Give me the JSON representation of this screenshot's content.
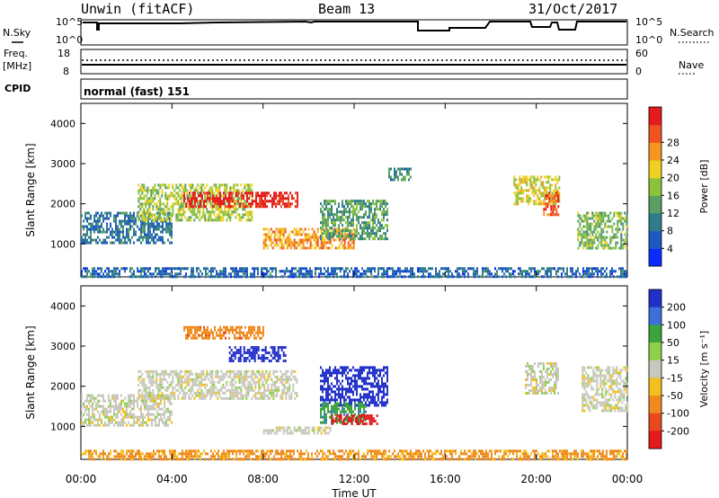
{
  "header": {
    "station": "Unwin (fitACF)",
    "beam": "Beam 13",
    "date": "31/Oct/2017"
  },
  "top_panel_labels": {
    "nsky": "N.Sky",
    "nsearch": "N.Search",
    "freq": "Freq.",
    "freq_unit": "[MHz]",
    "nave": "Nave",
    "cpid": "CPID",
    "cpid_value": "normal (fast) 151",
    "nsky_ticks": [
      "10^5",
      "10^0"
    ],
    "freq_ticks": [
      "18",
      "8"
    ],
    "nave_ticks": [
      "60",
      "0"
    ]
  },
  "chart_data": [
    {
      "type": "heatmap",
      "title": "Power",
      "xlabel": "Time UT",
      "ylabel": "Slant Range [km]",
      "x_ticks": [
        "00:00",
        "04:00",
        "08:00",
        "12:00",
        "16:00",
        "20:00",
        "00:00"
      ],
      "y_ticks": [
        1000,
        2000,
        3000,
        4000
      ],
      "ylim": [
        180,
        4500
      ],
      "xlim_hours": [
        0,
        24
      ],
      "colorbar": {
        "label": "Power [dB]",
        "ticks": [
          4,
          8,
          12,
          16,
          20,
          24,
          28
        ],
        "colors": [
          "#0a2cff",
          "#1d59c2",
          "#2f7d8a",
          "#5aa062",
          "#8cc33a",
          "#f0d020",
          "#f7951e",
          "#ef5320",
          "#e41a1c"
        ]
      },
      "regions": [
        {
          "t": [
            0.0,
            4.0
          ],
          "r": [
            1000,
            1800
          ],
          "level": 6
        },
        {
          "t": [
            2.5,
            7.5
          ],
          "r": [
            1600,
            2500
          ],
          "level": 14
        },
        {
          "t": [
            4.5,
            9.5
          ],
          "r": [
            1900,
            2300
          ],
          "level": 27
        },
        {
          "t": [
            8.0,
            12.0
          ],
          "r": [
            900,
            1400
          ],
          "level": 20
        },
        {
          "t": [
            10.5,
            13.5
          ],
          "r": [
            1100,
            2100
          ],
          "level": 10
        },
        {
          "t": [
            13.5,
            14.5
          ],
          "r": [
            2600,
            2900
          ],
          "level": 8
        },
        {
          "t": [
            19.0,
            21.0
          ],
          "r": [
            2000,
            2700
          ],
          "level": 16
        },
        {
          "t": [
            20.3,
            21.0
          ],
          "r": [
            1700,
            2300
          ],
          "level": 24
        },
        {
          "t": [
            21.8,
            24.0
          ],
          "r": [
            900,
            1800
          ],
          "level": 12
        },
        {
          "t": [
            0.0,
            24.0
          ],
          "r": [
            190,
            420
          ],
          "level": 5
        }
      ]
    },
    {
      "type": "heatmap",
      "title": "Velocity",
      "xlabel": "Time UT",
      "ylabel": "Slant Range [km]",
      "x_ticks": [
        "00:00",
        "04:00",
        "08:00",
        "12:00",
        "16:00",
        "20:00",
        "00:00"
      ],
      "y_ticks": [
        1000,
        2000,
        3000,
        4000
      ],
      "ylim": [
        180,
        4500
      ],
      "xlim_hours": [
        0,
        24
      ],
      "colorbar": {
        "label": "Velocity [m s⁻¹]",
        "ticks": [
          200,
          100,
          50,
          15,
          -15,
          -50,
          -100,
          -200
        ],
        "colors": [
          "#2130c8",
          "#3c6fd8",
          "#3aa33a",
          "#8fd04a",
          "#c8c8be",
          "#f4c020",
          "#f08a1e",
          "#e84a1e",
          "#e41a1c"
        ]
      },
      "regions": [
        {
          "t": [
            0.0,
            4.0
          ],
          "r": [
            1000,
            1800
          ],
          "v": 0
        },
        {
          "t": [
            2.5,
            9.5
          ],
          "r": [
            1700,
            2400
          ],
          "v": 0
        },
        {
          "t": [
            4.5,
            8.0
          ],
          "r": [
            3200,
            3500
          ],
          "v": -60
        },
        {
          "t": [
            6.5,
            9.0
          ],
          "r": [
            2600,
            3000
          ],
          "v": 180
        },
        {
          "t": [
            10.5,
            13.5
          ],
          "r": [
            1500,
            2500
          ],
          "v": 190
        },
        {
          "t": [
            10.5,
            12.5
          ],
          "r": [
            1100,
            1600
          ],
          "v": 60
        },
        {
          "t": [
            11.0,
            13.0
          ],
          "r": [
            1050,
            1300
          ],
          "v": -220
        },
        {
          "t": [
            8.0,
            11.0
          ],
          "r": [
            800,
            1000
          ],
          "v": 0
        },
        {
          "t": [
            19.5,
            21.0
          ],
          "r": [
            1800,
            2600
          ],
          "v": 0
        },
        {
          "t": [
            22.0,
            24.0
          ],
          "r": [
            1400,
            2500
          ],
          "v": 0
        },
        {
          "t": [
            0.0,
            24.0
          ],
          "r": [
            190,
            420
          ],
          "v": -40
        }
      ]
    }
  ]
}
